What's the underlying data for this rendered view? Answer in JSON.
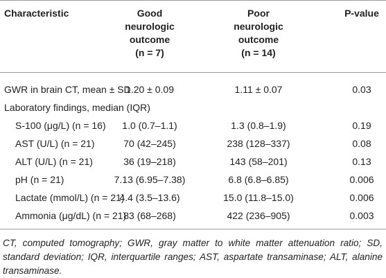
{
  "table": {
    "header": [
      [
        "Characteristic"
      ],
      [
        "Good",
        "neurologic",
        "outcome",
        "(n = 7)"
      ],
      [
        "Poor",
        "neurologic",
        "outcome",
        "(n = 14)"
      ],
      [
        "P-value"
      ]
    ],
    "rows": [
      [
        "GWR in brain CT, mean ± SD",
        "1.20 ± 0.09",
        "1.11 ± 0.07",
        "0.03"
      ],
      [
        "Laboratory findings, median (IQR)"
      ],
      [
        "S-100 (μg/L) (n = 16)",
        "1.0 (0.7–1.1)",
        "1.3 (0.8–1.9)",
        "0.19"
      ],
      [
        "AST (U/L) (n = 21)",
        "70 (42–245)",
        "238 (128–337)",
        "0.08"
      ],
      [
        "ALT (U/L) (n = 21)",
        "36 (19–218)",
        "143 (58–201)",
        "0.13"
      ],
      [
        "pH (n = 21)",
        "7.13 (6.95–7.38)",
        "6.8 (6.8–6.85)",
        "0.006"
      ],
      [
        "Lactate (mmol/L) (n = 21)",
        "4.4 (3.5–13.6)",
        "15.0 (11.8–15.0)",
        "0.006"
      ],
      [
        "Ammonia (μg/dL) (n = 21)",
        "83 (68–268)",
        "422 (236–905)",
        "0.003"
      ]
    ],
    "footnote": "CT, computed tomography; GWR, gray matter to white matter attenuation ratio; SD, standard deviation; IQR, interquartile ranges; AST, aspartate transaminase; ALT, alanine transaminase."
  }
}
